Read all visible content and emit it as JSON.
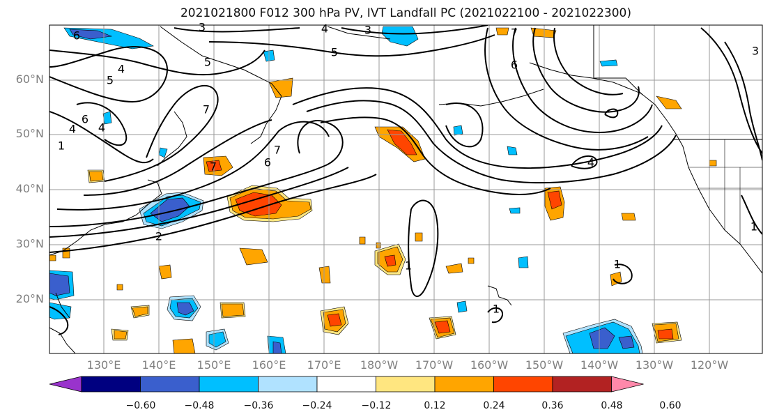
{
  "title": "2021021800 F012 300 hPa PV, IVT Landfall PC (2021022100 - 2021022300)",
  "lat_labels": [
    "60°N",
    "50°N",
    "40°N",
    "30°N",
    "20°N"
  ],
  "lon_labels": [
    "130°E",
    "140°E",
    "150°E",
    "160°E",
    "170°E",
    "180°W",
    "170°W",
    "160°W",
    "150°W",
    "140°W",
    "130°W",
    "120°W"
  ],
  "colorbar": {
    "tick_labels": [
      "−0.60",
      "−0.48",
      "−0.36",
      "−0.24",
      "−0.12",
      "0.12",
      "0.24",
      "0.36",
      "0.48",
      "0.60"
    ],
    "colors": [
      "#9933cc",
      "#000080",
      "#3a5fcd",
      "#00bfff",
      "#b0e2ff",
      "#ffffff",
      "#ffe680",
      "#ffa500",
      "#ff4500",
      "#b22222",
      "#ff88aa"
    ]
  },
  "pv_contour_labels": [
    "6",
    "5",
    "4",
    "5",
    "6",
    "7",
    "4",
    "4",
    "3",
    "5",
    "7",
    "6",
    "7",
    "6",
    "4",
    "1",
    "1",
    "1",
    "1",
    "2",
    "7",
    "3",
    "1",
    "3",
    "4"
  ],
  "shading_colors": {
    "pos_1": "#ffe680",
    "pos_2": "#ffa500",
    "pos_3": "#ff4500",
    "neg_1": "#b0e2ff",
    "neg_2": "#00bfff",
    "neg_3": "#3a5fcd"
  }
}
